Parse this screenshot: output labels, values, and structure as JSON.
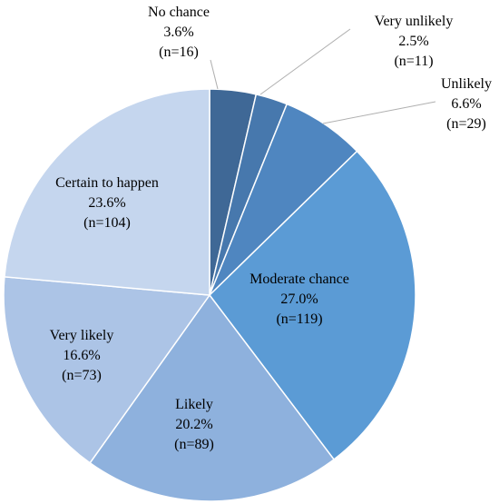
{
  "chart_data": {
    "type": "pie",
    "start_angle_deg": 0,
    "direction": "clockwise",
    "slices": [
      {
        "name": "No chance",
        "percent_label": "3.6%",
        "n_label": "(n=16)",
        "value": 16,
        "color": "#3f6896"
      },
      {
        "name": "Very unlikely",
        "percent_label": "2.5%",
        "n_label": "(n=11)",
        "value": 11,
        "color": "#4778ad"
      },
      {
        "name": "Unlikely",
        "percent_label": "6.6%",
        "n_label": "(n=29)",
        "value": 29,
        "color": "#4f86c0"
      },
      {
        "name": "Moderate chance",
        "percent_label": "27.0%",
        "n_label": "(n=119)",
        "value": 119,
        "color": "#5b9bd5"
      },
      {
        "name": "Likely",
        "percent_label": "20.2%",
        "n_label": "(n=89)",
        "value": 89,
        "color": "#8eb1dd"
      },
      {
        "name": "Very likely",
        "percent_label": "16.6%",
        "n_label": "(n=73)",
        "value": 73,
        "color": "#acc4e6"
      },
      {
        "name": "Certain to happen",
        "percent_label": "23.6%",
        "n_label": "(n=104)",
        "value": 104,
        "color": "#c5d6ee"
      }
    ]
  }
}
